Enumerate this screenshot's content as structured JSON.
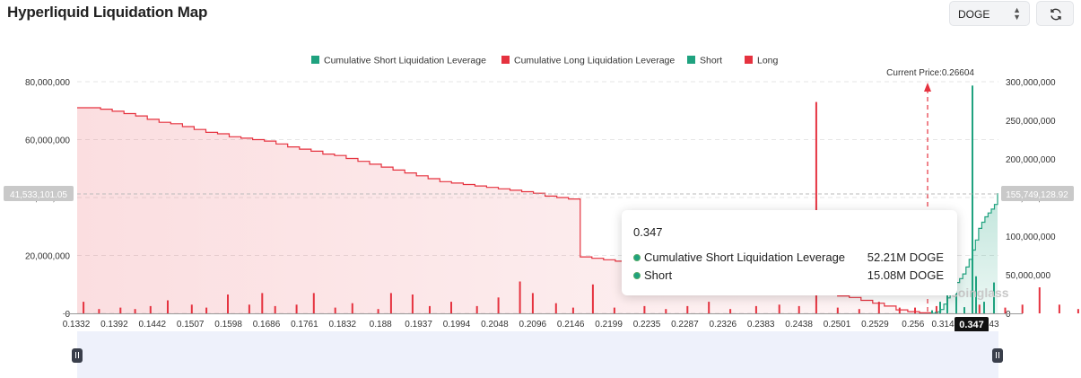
{
  "header": {
    "title": "Hyperliquid Liquidation Map",
    "coin_select": {
      "value": "DOGE"
    },
    "refresh_icon": "refresh-icon"
  },
  "chart_data": {
    "type": "bar",
    "legend": [
      {
        "name": "Cumulative Short Liquidation Leverage",
        "color": "#1fa27f"
      },
      {
        "name": "Cumulative Long Liquidation Leverage",
        "color": "#e5323f"
      },
      {
        "name": "Short",
        "color": "#1fa27f"
      },
      {
        "name": "Long",
        "color": "#e5323f"
      }
    ],
    "legend_position": "top-center",
    "x_tick_labels": [
      "0.1332",
      "0.1392",
      "0.1442",
      "0.1507",
      "0.1598",
      "0.1686",
      "0.1761",
      "0.1832",
      "0.188",
      "0.1937",
      "0.1994",
      "0.2048",
      "0.2096",
      "0.2146",
      "0.2199",
      "0.2235",
      "0.2287",
      "0.2326",
      "0.2383",
      "0.2438",
      "0.2501",
      "0.2529",
      "0.256",
      "0.314",
      "0.347",
      "43"
    ],
    "y_left": {
      "ticks": [
        "0",
        "20,000,000",
        "40,000,000",
        "60,000,000",
        "80,000,000"
      ],
      "range": [
        0,
        80000000
      ]
    },
    "y_right": {
      "ticks": [
        "0",
        "50,000,000",
        "100,000,000",
        "150,000,000",
        "200,000,000",
        "250,000,000",
        "300,000,000"
      ],
      "range": [
        0,
        300000000
      ]
    },
    "current_price": {
      "label": "Current Price:0.26604",
      "value": 0.26604
    },
    "crosshair": {
      "left_label": "41,533,101.05",
      "right_label": "155,749,128.92",
      "x_label": "0.347"
    },
    "cumulative_long": [
      71,
      71,
      70.5,
      69.8,
      69,
      68.2,
      67,
      66,
      65.5,
      64.5,
      63.5,
      62.5,
      62,
      61,
      60.5,
      60,
      59.5,
      58.5,
      57.5,
      56.7,
      56,
      55,
      54.5,
      53.5,
      52.5,
      51.5,
      50.5,
      49.5,
      48.5,
      47.5,
      46.5,
      45.5,
      45,
      44.5,
      44,
      43.5,
      43,
      42.5,
      42,
      41.5,
      40.5,
      40,
      39.5,
      19.5,
      19,
      18.5,
      18,
      17.5,
      17,
      16.5,
      16,
      15.5,
      15,
      14.5,
      14,
      13.5,
      13,
      12.5,
      12,
      11.5,
      11,
      8.5,
      8,
      7,
      6.5,
      6,
      5.5,
      4.5,
      3.5,
      2.5,
      1.2,
      0.6,
      0.2,
      0
    ],
    "cumulative_short": [
      0,
      0,
      2,
      5,
      12,
      20,
      28,
      35,
      40,
      45,
      51,
      60,
      70,
      82,
      95,
      110,
      118,
      125,
      130,
      135,
      141,
      155.7
    ],
    "long_bars": [
      {
        "x": 0.1352,
        "v": 4
      },
      {
        "x": 0.137,
        "v": 1.5
      },
      {
        "x": 0.1395,
        "v": 2
      },
      {
        "x": 0.1412,
        "v": 1.5
      },
      {
        "x": 0.143,
        "v": 2.5
      },
      {
        "x": 0.145,
        "v": 4.5
      },
      {
        "x": 0.1478,
        "v": 3
      },
      {
        "x": 0.1495,
        "v": 2
      },
      {
        "x": 0.152,
        "v": 6.5
      },
      {
        "x": 0.1545,
        "v": 3
      },
      {
        "x": 0.156,
        "v": 7
      },
      {
        "x": 0.1575,
        "v": 2.5
      },
      {
        "x": 0.16,
        "v": 3
      },
      {
        "x": 0.162,
        "v": 7
      },
      {
        "x": 0.1645,
        "v": 2
      },
      {
        "x": 0.1665,
        "v": 3.5
      },
      {
        "x": 0.1695,
        "v": 1.5
      },
      {
        "x": 0.171,
        "v": 7
      },
      {
        "x": 0.1735,
        "v": 6.5
      },
      {
        "x": 0.1755,
        "v": 2.5
      },
      {
        "x": 0.178,
        "v": 4
      },
      {
        "x": 0.181,
        "v": 2.5
      },
      {
        "x": 0.1835,
        "v": 5.5
      },
      {
        "x": 0.186,
        "v": 11
      },
      {
        "x": 0.1875,
        "v": 7
      },
      {
        "x": 0.1902,
        "v": 3.5
      },
      {
        "x": 0.1922,
        "v": 2
      },
      {
        "x": 0.1945,
        "v": 10
      },
      {
        "x": 0.197,
        "v": 2
      },
      {
        "x": 0.2005,
        "v": 2.5
      },
      {
        "x": 0.203,
        "v": 1.5
      },
      {
        "x": 0.2055,
        "v": 2.5
      },
      {
        "x": 0.208,
        "v": 4
      },
      {
        "x": 0.2105,
        "v": 1.5
      },
      {
        "x": 0.2135,
        "v": 2.5
      },
      {
        "x": 0.2162,
        "v": 3
      },
      {
        "x": 0.2185,
        "v": 2.5
      },
      {
        "x": 0.2205,
        "v": 73
      },
      {
        "x": 0.223,
        "v": 2
      },
      {
        "x": 0.2255,
        "v": 1.5
      },
      {
        "x": 0.2278,
        "v": 4
      },
      {
        "x": 0.2302,
        "v": 2
      },
      {
        "x": 0.232,
        "v": 2
      },
      {
        "x": 0.2345,
        "v": 2.5
      },
      {
        "x": 0.2368,
        "v": 1.5
      },
      {
        "x": 0.2395,
        "v": 3
      },
      {
        "x": 0.2425,
        "v": 2
      },
      {
        "x": 0.2445,
        "v": 3
      },
      {
        "x": 0.2465,
        "v": 9
      },
      {
        "x": 0.2488,
        "v": 3
      },
      {
        "x": 0.251,
        "v": 1.5
      },
      {
        "x": 0.2532,
        "v": 2
      },
      {
        "x": 0.2555,
        "v": 1.5
      },
      {
        "x": 0.258,
        "v": 1
      },
      {
        "x": 0.262,
        "v": 0.5
      }
    ],
    "short_bars": [
      {
        "x": 0.2685,
        "v": 4
      },
      {
        "x": 0.2705,
        "v": 2
      },
      {
        "x": 0.273,
        "v": 15
      },
      {
        "x": 0.2755,
        "v": 28
      },
      {
        "x": 0.2775,
        "v": 57
      },
      {
        "x": 0.279,
        "v": 295
      },
      {
        "x": 0.2805,
        "v": 8
      },
      {
        "x": 0.282,
        "v": 48
      },
      {
        "x": 0.2835,
        "v": 15
      },
      {
        "x": 0.2855,
        "v": 40
      }
    ]
  },
  "tooltip": {
    "title": "0.347",
    "rows": [
      {
        "label": "Cumulative Short Liquidation Leverage",
        "value": "52.21M DOGE"
      },
      {
        "label": "Short",
        "value": "15.08M DOGE"
      }
    ]
  },
  "watermark": "coinglass"
}
